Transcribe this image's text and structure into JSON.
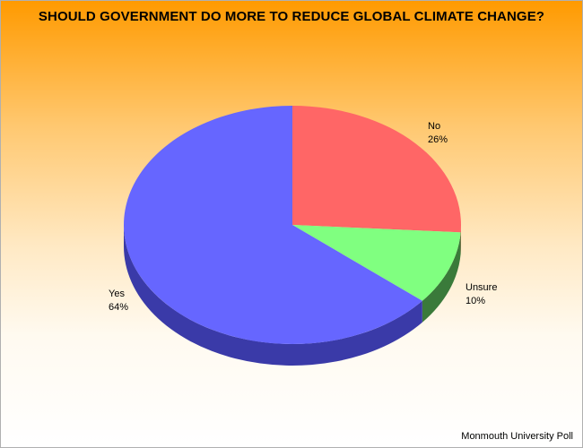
{
  "chart_data": {
    "type": "pie",
    "title": "SHOULD GOVERNMENT DO MORE TO REDUCE GLOBAL CLIMATE CHANGE?",
    "slices": [
      {
        "label": "No",
        "value": 26,
        "value_label": "26%",
        "color": "#ff6666",
        "side_color": "#b03a3a"
      },
      {
        "label": "Unsure",
        "value": 10,
        "value_label": "10%",
        "color": "#80ff80",
        "side_color": "#3a7a3a"
      },
      {
        "label": "Yes",
        "value": 64,
        "value_label": "64%",
        "color": "#6666ff",
        "side_color": "#3a3aa8"
      }
    ],
    "source": "Monmouth University Poll"
  }
}
